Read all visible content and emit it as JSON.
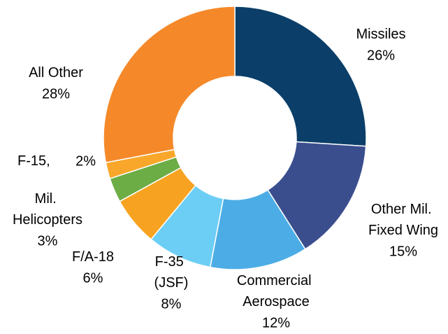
{
  "chart_data": {
    "type": "donut",
    "categories": [
      "Missiles",
      "Other Mil. Fixed Wing",
      "Commercial Aerospace",
      "F-35 (JSF)",
      "F/A-18",
      "Mil. Helicopters",
      "F-15,",
      "All Other"
    ],
    "values": [
      26,
      15,
      12,
      8,
      6,
      3,
      2,
      28
    ],
    "value_labels": [
      "26%",
      "15%",
      "12%",
      "8%",
      "6%",
      "3%",
      "2%",
      "28%"
    ],
    "colors": [
      "#0b3f69",
      "#3a4e8e",
      "#4cade6",
      "#6dcef5",
      "#f7a321",
      "#6cad46",
      "#f9a72a",
      "#f5892a"
    ]
  }
}
